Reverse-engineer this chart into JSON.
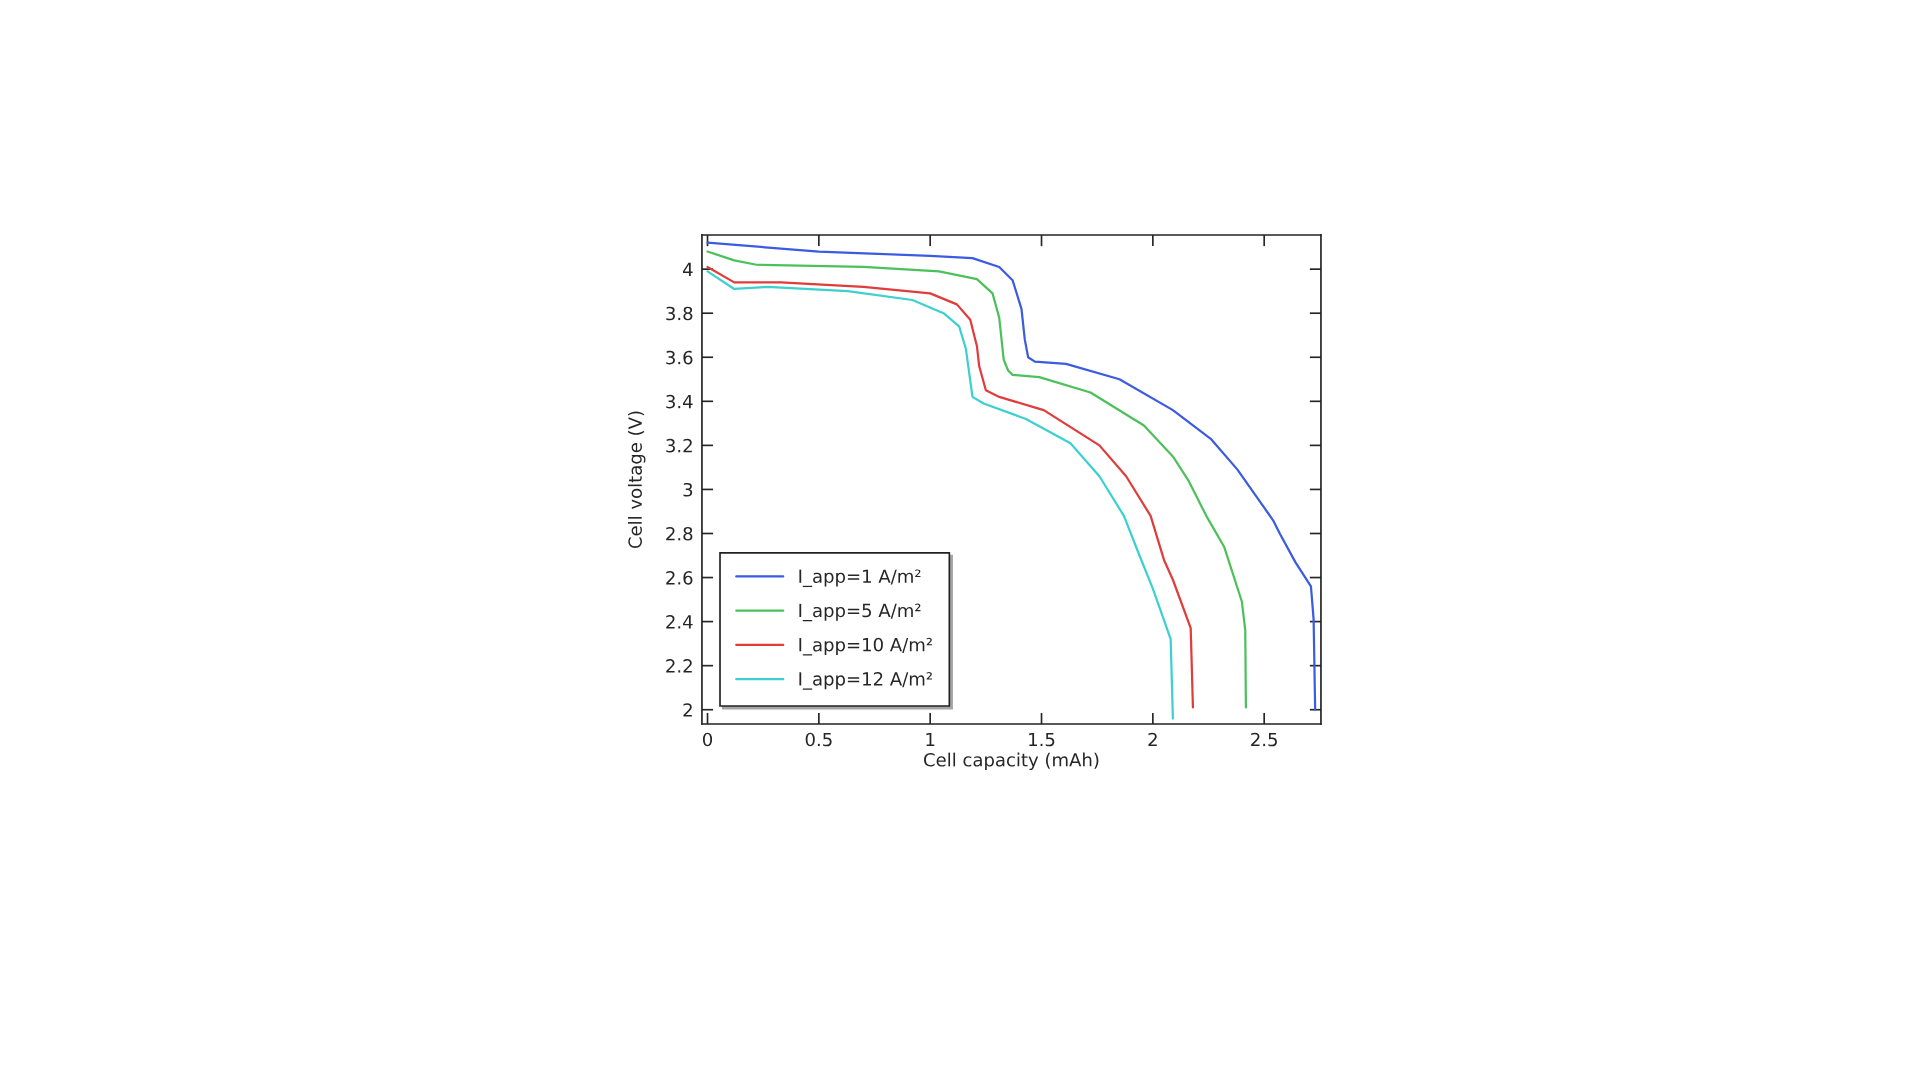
{
  "chart_data": {
    "type": "line",
    "xlabel": "Cell capacity (mAh)",
    "ylabel": "Cell voltage (V)",
    "xlim": [
      -0.025,
      2.755
    ],
    "ylim": [
      1.935,
      4.155
    ],
    "xticks": [
      0,
      0.5,
      1,
      1.5,
      2,
      2.5
    ],
    "yticks": [
      2,
      2.2,
      2.4,
      2.6,
      2.8,
      3,
      3.2,
      3.4,
      3.6,
      3.8,
      4
    ],
    "legend": "bottom left",
    "line_style": "solid",
    "series": [
      {
        "name": "I_app=1 A/m²",
        "color": "#3b5be0",
        "x": [
          0,
          0.5,
          1.0,
          1.19,
          1.31,
          1.37,
          1.41,
          1.425,
          1.44,
          1.47,
          1.61,
          1.85,
          2.09,
          2.26,
          2.38,
          2.54,
          2.57,
          2.64,
          2.71,
          2.722,
          2.729
        ],
        "values": [
          4.12,
          4.08,
          4.06,
          4.05,
          4.01,
          3.95,
          3.82,
          3.68,
          3.6,
          3.58,
          3.57,
          3.5,
          3.36,
          3.23,
          3.09,
          2.86,
          2.8,
          2.67,
          2.56,
          2.41,
          2.0
        ]
      },
      {
        "name": "I_app=5 A/m²",
        "color": "#4cc05a",
        "x": [
          0,
          0.12,
          0.22,
          0.7,
          1.04,
          1.21,
          1.28,
          1.31,
          1.33,
          1.35,
          1.37,
          1.49,
          1.72,
          1.96,
          2.09,
          2.16,
          2.24,
          2.32,
          2.4,
          2.415,
          2.418
        ],
        "values": [
          4.08,
          4.04,
          4.02,
          4.01,
          3.99,
          3.955,
          3.89,
          3.78,
          3.59,
          3.54,
          3.52,
          3.51,
          3.44,
          3.29,
          3.15,
          3.04,
          2.88,
          2.74,
          2.49,
          2.36,
          2.01
        ]
      },
      {
        "name": "I_app=10 A/m²",
        "color": "#e03c3c",
        "x": [
          0,
          0.12,
          0.33,
          0.7,
          1.0,
          1.12,
          1.18,
          1.21,
          1.22,
          1.25,
          1.31,
          1.51,
          1.76,
          1.88,
          1.99,
          2.05,
          2.09,
          2.17,
          2.18
        ],
        "values": [
          4.01,
          3.94,
          3.94,
          3.92,
          3.89,
          3.84,
          3.77,
          3.65,
          3.56,
          3.45,
          3.42,
          3.36,
          3.2,
          3.06,
          2.88,
          2.68,
          2.59,
          2.37,
          2.01
        ]
      },
      {
        "name": "I_app=12 A/m²",
        "color": "#3cd0d0",
        "x": [
          0,
          0.12,
          0.27,
          0.63,
          0.92,
          1.06,
          1.13,
          1.16,
          1.19,
          1.24,
          1.43,
          1.63,
          1.76,
          1.87,
          1.94,
          2.0,
          2.08,
          2.085,
          2.09
        ],
        "values": [
          3.99,
          3.91,
          3.92,
          3.9,
          3.86,
          3.8,
          3.74,
          3.64,
          3.42,
          3.39,
          3.32,
          3.21,
          3.06,
          2.88,
          2.7,
          2.55,
          2.32,
          2.14,
          1.96
        ]
      }
    ]
  }
}
